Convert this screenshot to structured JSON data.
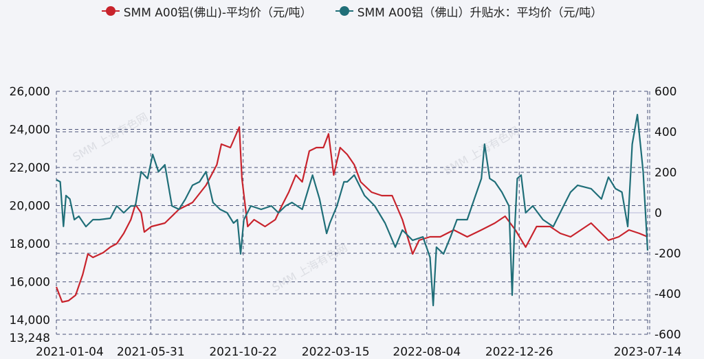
{
  "chart_data": {
    "type": "line",
    "title": "",
    "legend_position": "top",
    "x_unit": "days since 2021-01-04",
    "x_range": [
      0,
      921
    ],
    "x_ticks": [
      {
        "day": 0,
        "label": "2021-01-04"
      },
      {
        "day": 147,
        "label": "2021-05-31"
      },
      {
        "day": 291,
        "label": "2021-10-22"
      },
      {
        "day": 435,
        "label": "2022-03-15"
      },
      {
        "day": 577,
        "label": "2022-08-04"
      },
      {
        "day": 721,
        "label": "2022-12-26"
      },
      {
        "day": 921,
        "label": "2023-07-14"
      }
    ],
    "y_left": {
      "min": 13248,
      "max": 26000,
      "ticks": [
        "26,000",
        "24,000",
        "22,000",
        "20,000",
        "18,000",
        "16,000",
        "14,000",
        "13,248"
      ],
      "tick_values": [
        26000,
        24000,
        22000,
        20000,
        18000,
        16000,
        14000,
        13248
      ]
    },
    "y_right": {
      "min": -600,
      "max": 600,
      "ticks": [
        "600",
        "400",
        "200",
        "0",
        "-200",
        "-400",
        "-600"
      ],
      "tick_values": [
        600,
        400,
        200,
        0,
        -200,
        -400,
        -600
      ]
    },
    "grid": true,
    "series": [
      {
        "name": "SMM A00铝(佛山)-平均价（元/吨）",
        "axis": "left",
        "color": "#c8232c",
        "points": [
          [
            0,
            15734
          ],
          [
            9,
            14942
          ],
          [
            19,
            15014
          ],
          [
            30,
            15302
          ],
          [
            41,
            16383
          ],
          [
            49,
            17463
          ],
          [
            57,
            17283
          ],
          [
            73,
            17535
          ],
          [
            84,
            17823
          ],
          [
            94,
            18004
          ],
          [
            105,
            18544
          ],
          [
            116,
            19265
          ],
          [
            123,
            20057
          ],
          [
            132,
            19625
          ],
          [
            137,
            18617
          ],
          [
            148,
            18904
          ],
          [
            169,
            19084
          ],
          [
            191,
            19805
          ],
          [
            212,
            20165
          ],
          [
            233,
            21065
          ],
          [
            250,
            22146
          ],
          [
            257,
            23226
          ],
          [
            271,
            23046
          ],
          [
            278,
            23587
          ],
          [
            285,
            24127
          ],
          [
            289,
            21425
          ],
          [
            298,
            18904
          ],
          [
            308,
            19265
          ],
          [
            325,
            18904
          ],
          [
            341,
            19265
          ],
          [
            351,
            19985
          ],
          [
            362,
            20705
          ],
          [
            373,
            21606
          ],
          [
            383,
            21245
          ],
          [
            394,
            22866
          ],
          [
            405,
            23046
          ],
          [
            416,
            23046
          ],
          [
            424,
            23767
          ],
          [
            432,
            21606
          ],
          [
            442,
            23046
          ],
          [
            453,
            22686
          ],
          [
            464,
            22146
          ],
          [
            474,
            21245
          ],
          [
            491,
            20705
          ],
          [
            507,
            20525
          ],
          [
            523,
            20525
          ],
          [
            539,
            19265
          ],
          [
            555,
            17463
          ],
          [
            565,
            18184
          ],
          [
            582,
            18364
          ],
          [
            598,
            18364
          ],
          [
            619,
            18724
          ],
          [
            640,
            18364
          ],
          [
            662,
            18724
          ],
          [
            683,
            19084
          ],
          [
            699,
            19445
          ],
          [
            715,
            18724
          ],
          [
            731,
            17823
          ],
          [
            748,
            18904
          ],
          [
            769,
            18904
          ],
          [
            785,
            18544
          ],
          [
            801,
            18364
          ],
          [
            817,
            18724
          ],
          [
            833,
            19084
          ],
          [
            849,
            18544
          ],
          [
            860,
            18184
          ],
          [
            876,
            18364
          ],
          [
            892,
            18724
          ],
          [
            908,
            18544
          ],
          [
            921,
            18364
          ]
        ]
      },
      {
        "name": "SMM A00铝（佛山）升贴水：平均价（元/吨）",
        "axis": "right",
        "color": "#1f6e78",
        "points": [
          [
            0,
            163
          ],
          [
            6,
            153
          ],
          [
            11,
            -67
          ],
          [
            15,
            85
          ],
          [
            21,
            68
          ],
          [
            28,
            -34
          ],
          [
            35,
            -17
          ],
          [
            46,
            -68
          ],
          [
            57,
            -34
          ],
          [
            67,
            -34
          ],
          [
            84,
            -27
          ],
          [
            94,
            34
          ],
          [
            105,
            0
          ],
          [
            116,
            34
          ],
          [
            123,
            34
          ],
          [
            132,
            203
          ],
          [
            142,
            169
          ],
          [
            150,
            288
          ],
          [
            159,
            203
          ],
          [
            169,
            237
          ],
          [
            180,
            34
          ],
          [
            191,
            17
          ],
          [
            201,
            68
          ],
          [
            212,
            136
          ],
          [
            223,
            153
          ],
          [
            233,
            203
          ],
          [
            244,
            51
          ],
          [
            255,
            17
          ],
          [
            266,
            0
          ],
          [
            276,
            -51
          ],
          [
            282,
            -34
          ],
          [
            287,
            -203
          ],
          [
            292,
            -34
          ],
          [
            303,
            34
          ],
          [
            319,
            17
          ],
          [
            335,
            34
          ],
          [
            346,
            0
          ],
          [
            357,
            34
          ],
          [
            367,
            51
          ],
          [
            383,
            17
          ],
          [
            399,
            186
          ],
          [
            410,
            68
          ],
          [
            421,
            -102
          ],
          [
            426,
            -51
          ],
          [
            437,
            34
          ],
          [
            448,
            153
          ],
          [
            453,
            153
          ],
          [
            464,
            186
          ],
          [
            480,
            85
          ],
          [
            496,
            34
          ],
          [
            512,
            -51
          ],
          [
            528,
            -170
          ],
          [
            539,
            -85
          ],
          [
            555,
            -136
          ],
          [
            571,
            -119
          ],
          [
            582,
            -220
          ],
          [
            587,
            -458
          ],
          [
            592,
            -170
          ],
          [
            603,
            -203
          ],
          [
            614,
            -119
          ],
          [
            624,
            -34
          ],
          [
            640,
            -34
          ],
          [
            651,
            68
          ],
          [
            662,
            169
          ],
          [
            667,
            339
          ],
          [
            675,
            169
          ],
          [
            683,
            153
          ],
          [
            694,
            102
          ],
          [
            705,
            34
          ],
          [
            710,
            -407
          ],
          [
            713,
            -136
          ],
          [
            718,
            169
          ],
          [
            724,
            186
          ],
          [
            731,
            0
          ],
          [
            742,
            34
          ],
          [
            758,
            -34
          ],
          [
            774,
            -68
          ],
          [
            790,
            34
          ],
          [
            801,
            102
          ],
          [
            812,
            136
          ],
          [
            833,
            119
          ],
          [
            849,
            68
          ],
          [
            860,
            176
          ],
          [
            871,
            119
          ],
          [
            881,
            102
          ],
          [
            890,
            -68
          ],
          [
            897,
            339
          ],
          [
            905,
            485
          ],
          [
            914,
            203
          ],
          [
            921,
            -186
          ]
        ]
      }
    ]
  },
  "watermark": "SMM 上海有色网"
}
